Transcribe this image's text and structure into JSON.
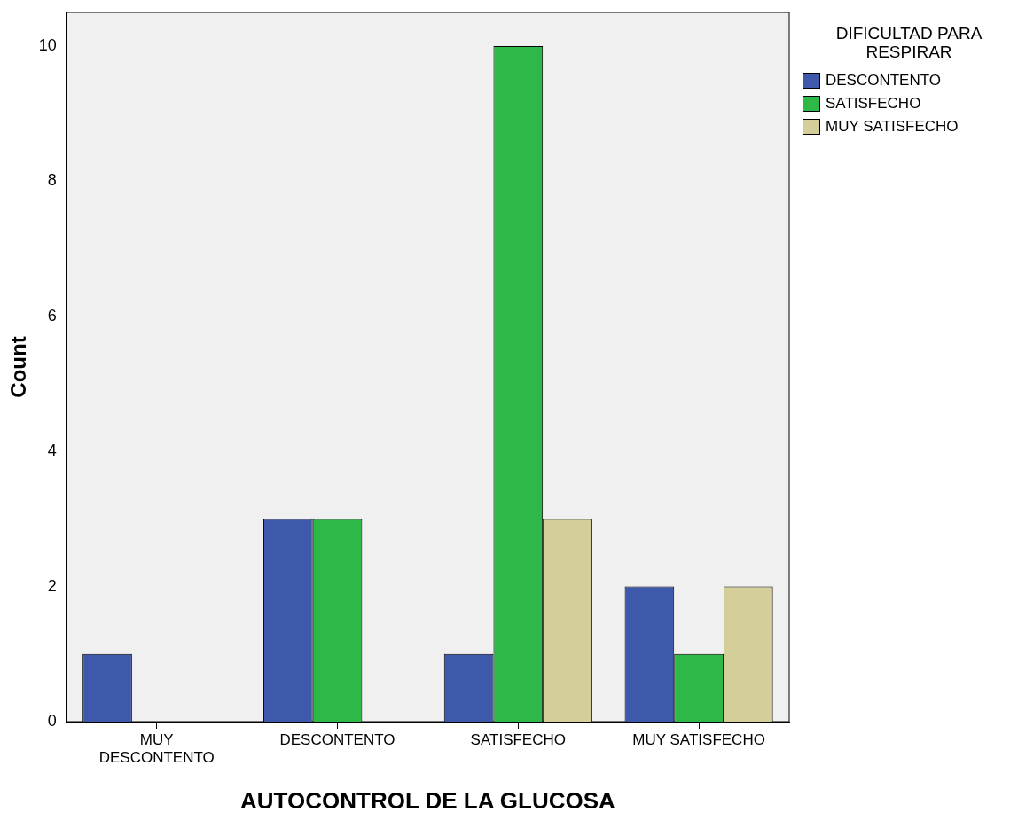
{
  "chart_data": {
    "type": "bar",
    "xlabel": "AUTOCONTROL DE LA GLUCOSA",
    "ylabel": "Count",
    "legend_title": "DIFICULTAD PARA RESPIRAR",
    "categories": [
      "MUY DESCONTENTO",
      "DESCONTENTO",
      "SATISFECHO",
      "MUY SATISFECHO"
    ],
    "series": [
      {
        "name": "DESCONTENTO",
        "color": "#3e58ac",
        "values": [
          1,
          3,
          1,
          2
        ]
      },
      {
        "name": "SATISFECHO",
        "color": "#2eb848",
        "values": [
          null,
          3,
          10,
          1
        ]
      },
      {
        "name": "MUY SATISFECHO",
        "color": "#d4cf99",
        "values": [
          null,
          null,
          3,
          2
        ]
      }
    ],
    "ylim": [
      0,
      10.5
    ],
    "yticks": [
      0,
      2,
      4,
      6,
      8,
      10
    ],
    "grid": false,
    "legend": "top right"
  }
}
